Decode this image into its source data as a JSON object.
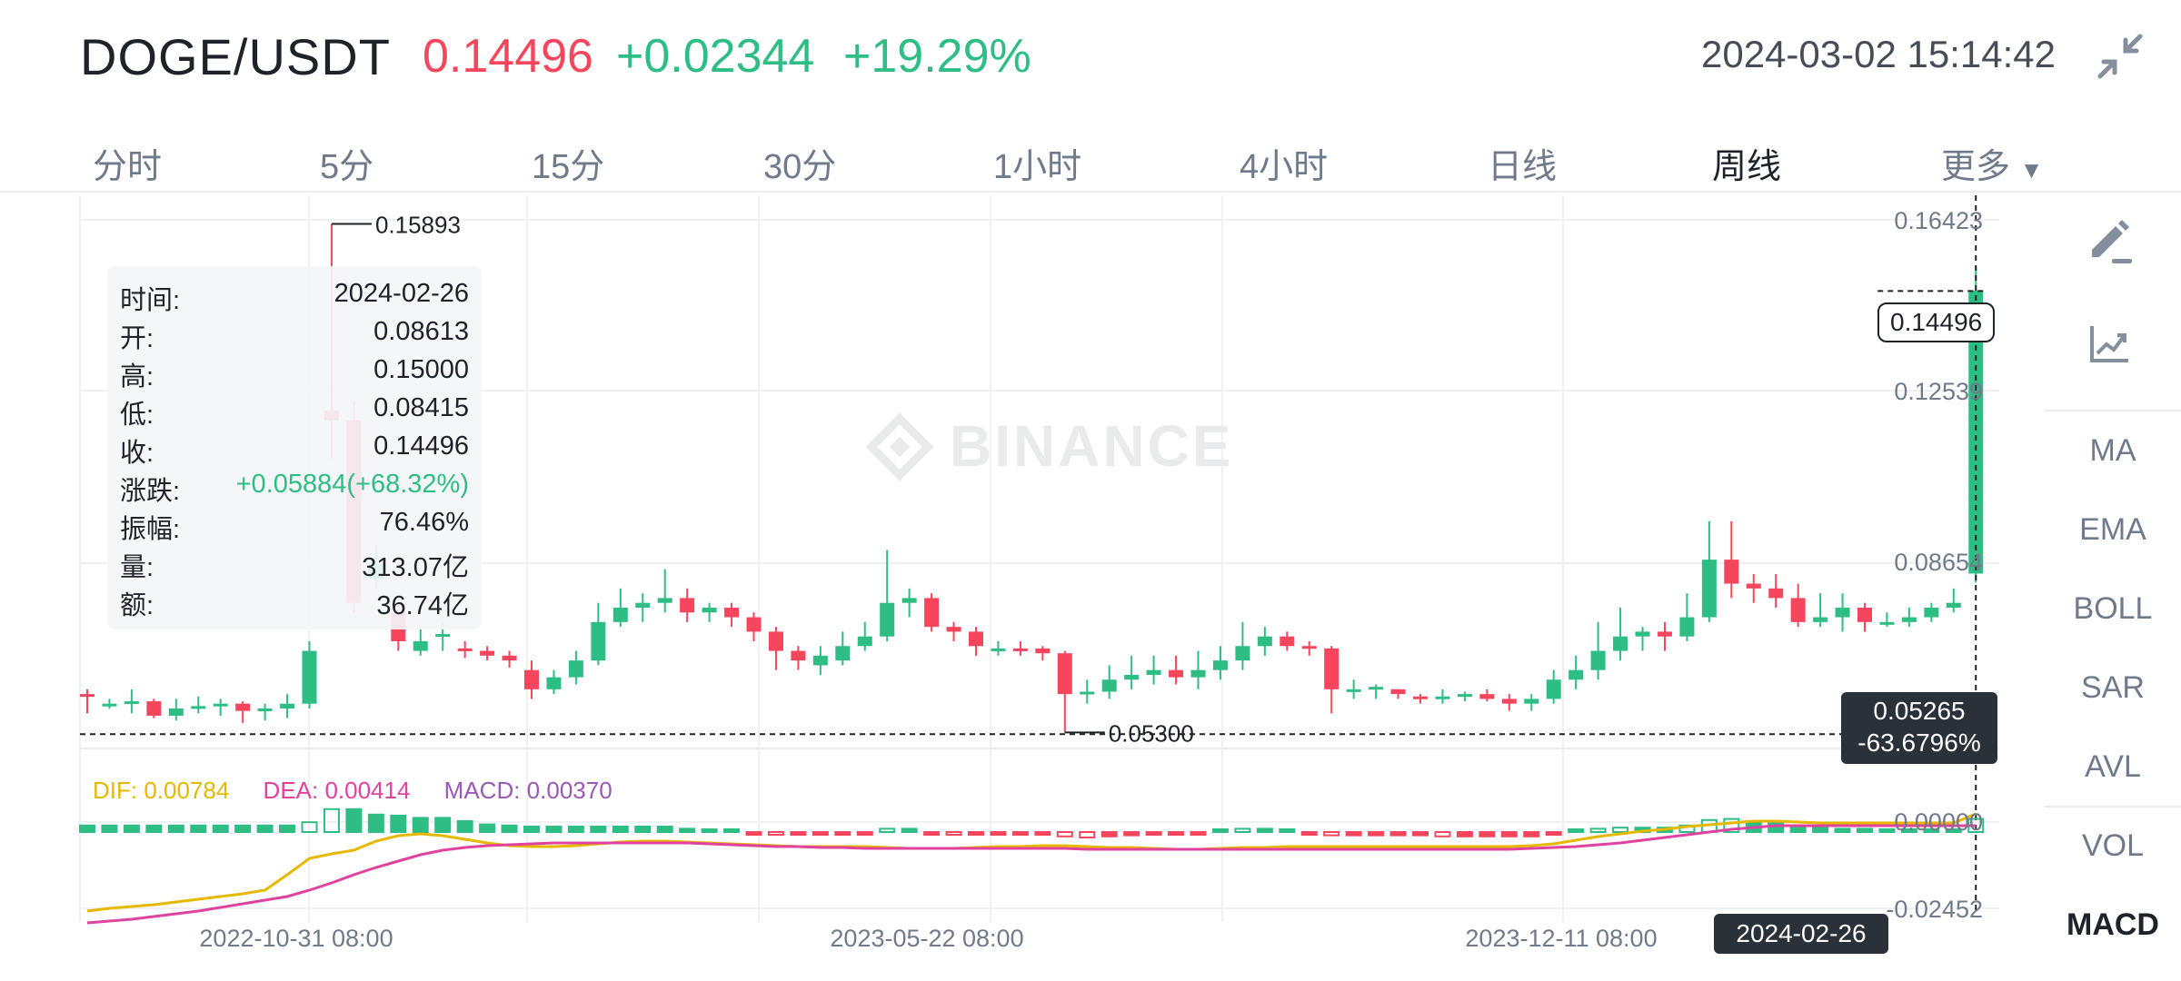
{
  "header": {
    "pair": "DOGE/USDT",
    "price": "0.14496",
    "change": "+0.02344",
    "change_pct": "+19.29%",
    "timestamp": "2024-03-02 15:14:42"
  },
  "tabs": [
    "分时",
    "5分",
    "15分",
    "30分",
    "1小时",
    "4小时",
    "日线",
    "周线",
    "更多"
  ],
  "active_tab": "周线",
  "toolbar": [
    "MA",
    "EMA",
    "BOLL",
    "SAR",
    "AVL",
    "VOL",
    "MACD"
  ],
  "active_indicator": "MACD",
  "info_panel": {
    "rows": [
      {
        "k": "时间:",
        "v": "2024-02-26"
      },
      {
        "k": "开:",
        "v": "0.08613"
      },
      {
        "k": "高:",
        "v": "0.15000"
      },
      {
        "k": "低:",
        "v": "0.08415"
      },
      {
        "k": "收:",
        "v": "0.14496"
      },
      {
        "k": "涨跌:",
        "v": "+0.05884(+68.32%)"
      },
      {
        "k": "振幅:",
        "v": "76.46%"
      },
      {
        "k": "量:",
        "v": "313.07亿"
      },
      {
        "k": "额:",
        "v": "36.74亿"
      }
    ]
  },
  "watermark": "BINANCE",
  "macd_legend": {
    "dif": "DIF: 0.00784",
    "dea": "DEA: 0.00414",
    "macd": "MACD: 0.00370"
  },
  "last_price_tag": "0.14496",
  "crosshair": {
    "price": "0.05265",
    "pct": "-63.6796%",
    "date": "2024-02-26"
  },
  "colors": {
    "up": "#2ebd85",
    "down": "#f6465d",
    "dif": "#e6b800",
    "dea": "#e0439f",
    "macd_label": "#9b59b6",
    "grid": "#f0f1f2"
  },
  "chart_data": {
    "type": "candlestick",
    "price_axis_ticks": [
      "0.16423",
      "0.12539",
      "0.08654"
    ],
    "macd_axis_ticks": [
      "0.00000",
      "-0.02452"
    ],
    "time_ticks": [
      "2022-10-31 08:00",
      "2023-05-22 08:00",
      "2023-12-11 08:00"
    ],
    "high_marker": "0.15893",
    "low_marker": "0.05300",
    "crosshair_price": 0.05265,
    "candles": [
      [
        0.061,
        0.0605,
        0.062,
        0.057
      ],
      [
        0.0585,
        0.059,
        0.06,
        0.058
      ],
      [
        0.059,
        0.0595,
        0.062,
        0.057
      ],
      [
        0.0595,
        0.0565,
        0.06,
        0.056
      ],
      [
        0.0565,
        0.058,
        0.06,
        0.0555
      ],
      [
        0.058,
        0.0585,
        0.0605,
        0.057
      ],
      [
        0.0585,
        0.059,
        0.06,
        0.0565
      ],
      [
        0.059,
        0.0575,
        0.0595,
        0.055
      ],
      [
        0.0575,
        0.058,
        0.059,
        0.0555
      ],
      [
        0.058,
        0.059,
        0.061,
        0.056
      ],
      [
        0.059,
        0.07,
        0.072,
        0.058
      ],
      [
        0.12,
        0.118,
        0.1589,
        0.11
      ],
      [
        0.118,
        0.08,
        0.122,
        0.078
      ],
      [
        0.085,
        0.088,
        0.092,
        0.083
      ],
      [
        0.078,
        0.072,
        0.08,
        0.07
      ],
      [
        0.07,
        0.072,
        0.075,
        0.069
      ],
      [
        0.073,
        0.0735,
        0.076,
        0.07
      ],
      [
        0.0705,
        0.07,
        0.072,
        0.0685
      ],
      [
        0.07,
        0.069,
        0.071,
        0.068
      ],
      [
        0.069,
        0.068,
        0.07,
        0.0665
      ],
      [
        0.066,
        0.062,
        0.068,
        0.06
      ],
      [
        0.062,
        0.0645,
        0.066,
        0.061
      ],
      [
        0.0645,
        0.068,
        0.07,
        0.063
      ],
      [
        0.068,
        0.076,
        0.08,
        0.067
      ],
      [
        0.076,
        0.079,
        0.083,
        0.075
      ],
      [
        0.079,
        0.08,
        0.082,
        0.076
      ],
      [
        0.08,
        0.081,
        0.087,
        0.078
      ],
      [
        0.081,
        0.078,
        0.083,
        0.076
      ],
      [
        0.078,
        0.079,
        0.08,
        0.076
      ],
      [
        0.079,
        0.077,
        0.08,
        0.075
      ],
      [
        0.077,
        0.074,
        0.078,
        0.072
      ],
      [
        0.074,
        0.07,
        0.075,
        0.066
      ],
      [
        0.07,
        0.068,
        0.071,
        0.066
      ],
      [
        0.067,
        0.069,
        0.071,
        0.065
      ],
      [
        0.068,
        0.071,
        0.074,
        0.067
      ],
      [
        0.071,
        0.073,
        0.076,
        0.07
      ],
      [
        0.073,
        0.08,
        0.091,
        0.072
      ],
      [
        0.08,
        0.081,
        0.083,
        0.077
      ],
      [
        0.081,
        0.075,
        0.082,
        0.074
      ],
      [
        0.075,
        0.074,
        0.076,
        0.072
      ],
      [
        0.074,
        0.071,
        0.075,
        0.069
      ],
      [
        0.07,
        0.0705,
        0.072,
        0.069
      ],
      [
        0.0705,
        0.07,
        0.072,
        0.069
      ],
      [
        0.0705,
        0.0695,
        0.071,
        0.068
      ],
      [
        0.0695,
        0.061,
        0.07,
        0.053
      ],
      [
        0.061,
        0.0615,
        0.064,
        0.059
      ],
      [
        0.0615,
        0.064,
        0.067,
        0.06
      ],
      [
        0.064,
        0.065,
        0.069,
        0.062
      ],
      [
        0.065,
        0.066,
        0.069,
        0.063
      ],
      [
        0.066,
        0.0645,
        0.069,
        0.063
      ],
      [
        0.0645,
        0.066,
        0.07,
        0.062
      ],
      [
        0.066,
        0.068,
        0.071,
        0.064
      ],
      [
        0.068,
        0.071,
        0.076,
        0.066
      ],
      [
        0.071,
        0.073,
        0.075,
        0.069
      ],
      [
        0.073,
        0.071,
        0.074,
        0.07
      ],
      [
        0.071,
        0.0705,
        0.072,
        0.069
      ],
      [
        0.0705,
        0.062,
        0.071,
        0.057
      ],
      [
        0.0615,
        0.062,
        0.064,
        0.06
      ],
      [
        0.062,
        0.0625,
        0.063,
        0.06
      ],
      [
        0.062,
        0.061,
        0.062,
        0.06
      ],
      [
        0.0605,
        0.06,
        0.061,
        0.059
      ],
      [
        0.06,
        0.0605,
        0.062,
        0.059
      ],
      [
        0.0605,
        0.061,
        0.0615,
        0.0595
      ],
      [
        0.061,
        0.06,
        0.062,
        0.0595
      ],
      [
        0.06,
        0.059,
        0.061,
        0.0575
      ],
      [
        0.059,
        0.06,
        0.061,
        0.0575
      ],
      [
        0.06,
        0.064,
        0.066,
        0.059
      ],
      [
        0.064,
        0.066,
        0.069,
        0.062
      ],
      [
        0.066,
        0.07,
        0.076,
        0.064
      ],
      [
        0.07,
        0.073,
        0.079,
        0.068
      ],
      [
        0.073,
        0.074,
        0.075,
        0.07
      ],
      [
        0.074,
        0.073,
        0.076,
        0.07
      ],
      [
        0.073,
        0.077,
        0.082,
        0.072
      ],
      [
        0.077,
        0.089,
        0.097,
        0.076
      ],
      [
        0.089,
        0.084,
        0.097,
        0.081
      ],
      [
        0.084,
        0.083,
        0.086,
        0.08
      ],
      [
        0.083,
        0.081,
        0.086,
        0.079
      ],
      [
        0.081,
        0.076,
        0.084,
        0.075
      ],
      [
        0.076,
        0.077,
        0.082,
        0.075
      ],
      [
        0.077,
        0.079,
        0.082,
        0.074
      ],
      [
        0.079,
        0.076,
        0.08,
        0.074
      ],
      [
        0.076,
        0.076,
        0.078,
        0.075
      ],
      [
        0.076,
        0.077,
        0.079,
        0.075
      ],
      [
        0.077,
        0.079,
        0.08,
        0.076
      ],
      [
        0.079,
        0.08,
        0.083,
        0.078
      ],
      [
        0.0861,
        0.145,
        0.15,
        0.0842
      ]
    ]
  }
}
